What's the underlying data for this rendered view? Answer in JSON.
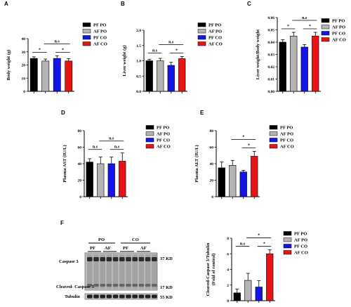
{
  "figure": {
    "series_colors": {
      "PF PO": "#000000",
      "AF PO": "#b4b4b4",
      "PF CO": "#1414e6",
      "AF CO": "#e61414"
    },
    "legend": [
      "PF PO",
      "AF PO",
      "PF CO",
      "AF CO"
    ],
    "blot": {
      "panel_label": "F",
      "group_labels": [
        "PO",
        "CO"
      ],
      "lane_labels": [
        "PF",
        "AF",
        "PF",
        "AF"
      ],
      "band_labels": [
        "Caspase 3",
        "Cleaved- Caspase 3",
        "Tubulin"
      ],
      "kd_labels": [
        "37 KD",
        "17 KD",
        "55 KD"
      ]
    }
  },
  "chart_data": [
    {
      "panel": "A",
      "type": "bar",
      "categories": [
        "PF PO",
        "AF PO",
        "PF CO",
        "AF CO"
      ],
      "values": [
        25,
        23,
        25,
        23
      ],
      "errors": [
        1.2,
        1.5,
        2,
        1.8
      ],
      "ylabel": "Body weight (g)",
      "ylim": [
        0,
        40
      ],
      "yticks": [
        "0",
        "10",
        "20",
        "30",
        "40"
      ],
      "significance": [
        {
          "from": 0,
          "to": 1,
          "label": "*"
        },
        {
          "from": 2,
          "to": 3,
          "label": "*"
        },
        {
          "from": 1,
          "to": 3,
          "label": "n.s"
        }
      ]
    },
    {
      "panel": "B",
      "type": "bar",
      "categories": [
        "PF PO",
        "AF PO",
        "PF CO",
        "AF CO"
      ],
      "values": [
        1.0,
        1.0,
        0.85,
        1.07
      ],
      "errors": [
        0.05,
        0.08,
        0.1,
        0.07
      ],
      "ylabel": "Liver weight (g)",
      "ylim": [
        0,
        2.0
      ],
      "yticks": [
        "0.0",
        "0.5",
        "1.0",
        "1.5",
        "2.0"
      ],
      "significance": [
        {
          "from": 0,
          "to": 1,
          "label": "n.s"
        },
        {
          "from": 2,
          "to": 3,
          "label": "*"
        },
        {
          "from": 1,
          "to": 3,
          "label": "n.s"
        }
      ]
    },
    {
      "panel": "C",
      "type": "bar",
      "categories": [
        "PF PO",
        "AF PO",
        "PF CO",
        "AF CO"
      ],
      "values": [
        0.04,
        0.045,
        0.036,
        0.045
      ],
      "errors": [
        0.002,
        0.003,
        0.002,
        0.003
      ],
      "ylabel": "Liver weight/Body weight",
      "ylim": [
        0,
        0.06
      ],
      "yticks": [
        "0.00",
        "0.01",
        "0.02",
        "0.03",
        "0.04",
        "0.05",
        "0.06"
      ],
      "significance": [
        {
          "from": 0,
          "to": 1,
          "label": "*"
        },
        {
          "from": 2,
          "to": 3,
          "label": "*"
        },
        {
          "from": 1,
          "to": 3,
          "label": "n.s"
        }
      ]
    },
    {
      "panel": "D",
      "type": "bar",
      "categories": [
        "PF PO",
        "AF PO",
        "PF CO",
        "AF CO"
      ],
      "values": [
        42,
        40,
        40,
        43
      ],
      "errors": [
        4,
        8,
        8,
        10
      ],
      "ylabel": "Plasma AST (IU/L)",
      "ylim": [
        0,
        80
      ],
      "yticks": [
        "0",
        "20",
        "40",
        "60",
        "80"
      ],
      "significance": [
        {
          "from": 0,
          "to": 1,
          "label": "n.s"
        },
        {
          "from": 2,
          "to": 3,
          "label": "n.s"
        },
        {
          "from": 1,
          "to": 3,
          "label": "n.s"
        }
      ]
    },
    {
      "panel": "E",
      "type": "bar",
      "categories": [
        "PF PO",
        "AF PO",
        "PF CO",
        "AF CO"
      ],
      "values": [
        35,
        38,
        30,
        49
      ],
      "errors": [
        7,
        6,
        2,
        6
      ],
      "ylabel": "Plasma ALT (IU/L)",
      "ylim": [
        0,
        80
      ],
      "yticks": [
        "0",
        "20",
        "40",
        "60",
        "80"
      ],
      "significance": [
        {
          "from": 2,
          "to": 3,
          "label": "*"
        },
        {
          "from": 1,
          "to": 3,
          "label": "*"
        }
      ]
    },
    {
      "panel": "F-quant",
      "type": "bar",
      "categories": [
        "PF PO",
        "AF PO",
        "PF CO",
        "AF CO"
      ],
      "values": [
        1.0,
        2.6,
        1.75,
        6.0
      ],
      "errors": [
        0.5,
        0.9,
        0.8,
        0.5
      ],
      "ylabel": "Cleaved-Caspase 3/Tubulin (Fold of control)",
      "ylabel_lines": [
        "Cleaved-Caspase 3/Tubulin",
        "(Fold of control)"
      ],
      "ylim": [
        0,
        8
      ],
      "yticks": [
        "0",
        "2",
        "4",
        "6",
        "8"
      ],
      "significance": [
        {
          "from": 0,
          "to": 1,
          "label": "n.s"
        },
        {
          "from": 2,
          "to": 3,
          "label": "*"
        },
        {
          "from": 1,
          "to": 3,
          "label": "*"
        }
      ]
    }
  ]
}
